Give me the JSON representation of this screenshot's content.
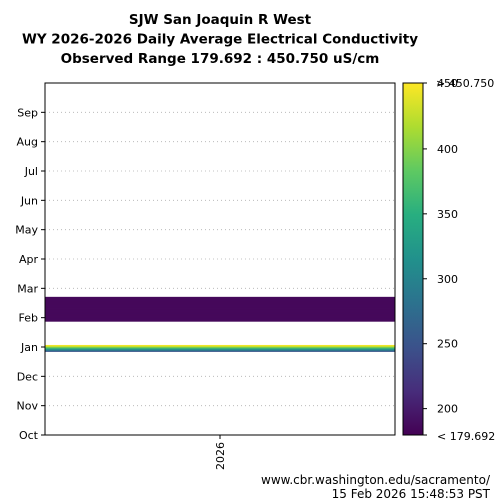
{
  "chart_data": {
    "type": "heatmap",
    "title_lines": [
      "SJW San Joaquin R West",
      "WY 2026-2026 Daily Average Electrical Conductivity",
      "Observed Range 179.692 : 450.750 uS/cm"
    ],
    "x_categories": [
      "2026"
    ],
    "y_ticks": [
      "Oct",
      "Nov",
      "Dec",
      "Jan",
      "Feb",
      "Mar",
      "Apr",
      "May",
      "Jun",
      "Jul",
      "Aug",
      "Sep"
    ],
    "y_range_months": [
      0,
      12
    ],
    "grid": true,
    "colormap": "viridis",
    "value_range": [
      179.692,
      450.75
    ],
    "colorbar": {
      "ticks": [
        200,
        250,
        300,
        350,
        400
      ],
      "top_label": "> 450.750",
      "top_tick_partial": "450",
      "bottom_label": "< 179.692"
    },
    "observed_bands": [
      {
        "start_month": 2.85,
        "end_month": 3.07,
        "value_start": 253,
        "value_end": 445
      },
      {
        "start_month": 3.88,
        "end_month": 4.71,
        "value_start": 186,
        "value_end": 186
      }
    ]
  },
  "footer": {
    "url": "www.cbr.washington.edu/sacramento/",
    "timestamp": "15 Feb 2026 15:48:53 PST"
  }
}
